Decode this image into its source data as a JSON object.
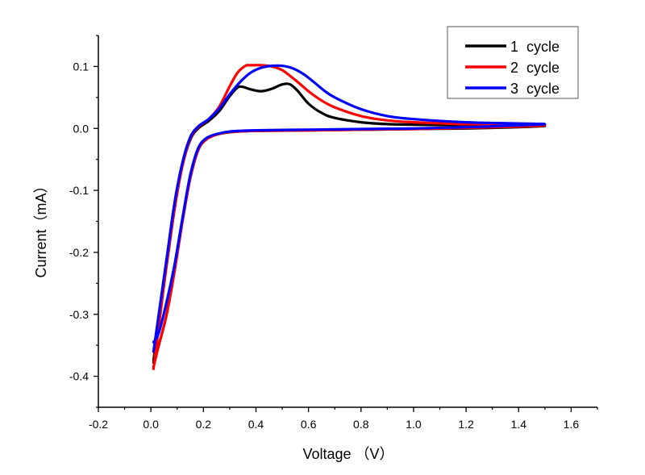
{
  "chart_data": {
    "type": "line",
    "title": "",
    "xlabel": "Voltage （V）",
    "ylabel": "Current（mA）",
    "xlim": [
      -0.2,
      1.7
    ],
    "ylim": [
      -0.45,
      0.15
    ],
    "xticks": [
      -0.2,
      0.0,
      0.2,
      0.4,
      0.6,
      0.8,
      1.0,
      1.2,
      1.4,
      1.6
    ],
    "xtick_labels": [
      "-0.2",
      "0.0",
      "0.2",
      "0.4",
      "0.6",
      "0.8",
      "1.0",
      "1.2",
      "1.4",
      "1.6"
    ],
    "yticks": [
      0.1,
      0.0,
      -0.1,
      -0.2,
      -0.3,
      -0.4
    ],
    "ytick_labels": [
      "0.1",
      "0.0",
      "-0.1",
      "-0.2",
      "-0.3",
      "-0.4"
    ],
    "grid": false,
    "legend_position": "top-right",
    "series": [
      {
        "name": "1  cycle",
        "color": "#000000",
        "x": [
          0.01,
          0.03,
          0.06,
          0.09,
          0.12,
          0.15,
          0.18,
          0.22,
          0.26,
          0.3,
          0.33,
          0.35,
          0.38,
          0.42,
          0.46,
          0.5,
          0.53,
          0.56,
          0.6,
          0.65,
          0.7,
          0.8,
          0.9,
          1.0,
          1.2,
          1.4,
          1.5,
          1.4,
          1.2,
          1.0,
          0.8,
          0.6,
          0.4,
          0.3,
          0.25,
          0.21,
          0.18,
          0.15,
          0.12,
          0.09,
          0.06,
          0.03,
          0.01
        ],
        "y": [
          -0.375,
          -0.31,
          -0.22,
          -0.13,
          -0.06,
          -0.018,
          0.0,
          0.012,
          0.028,
          0.052,
          0.066,
          0.067,
          0.063,
          0.06,
          0.064,
          0.071,
          0.071,
          0.06,
          0.04,
          0.025,
          0.017,
          0.01,
          0.007,
          0.006,
          0.005,
          0.004,
          0.004,
          0.002,
          0.0,
          -0.001,
          -0.002,
          -0.003,
          -0.004,
          -0.006,
          -0.01,
          -0.018,
          -0.035,
          -0.08,
          -0.15,
          -0.23,
          -0.3,
          -0.35,
          -0.378
        ]
      },
      {
        "name": "2  cycle",
        "color": "#ff0000",
        "x": [
          0.01,
          0.03,
          0.06,
          0.09,
          0.12,
          0.15,
          0.18,
          0.22,
          0.26,
          0.3,
          0.33,
          0.36,
          0.38,
          0.42,
          0.46,
          0.5,
          0.55,
          0.6,
          0.65,
          0.7,
          0.8,
          0.9,
          1.0,
          1.2,
          1.4,
          1.5,
          1.4,
          1.2,
          1.0,
          0.8,
          0.6,
          0.4,
          0.3,
          0.25,
          0.21,
          0.18,
          0.15,
          0.12,
          0.09,
          0.06,
          0.03,
          0.01
        ],
        "y": [
          -0.388,
          -0.32,
          -0.22,
          -0.13,
          -0.06,
          -0.016,
          0.002,
          0.015,
          0.035,
          0.068,
          0.09,
          0.101,
          0.102,
          0.102,
          0.1,
          0.094,
          0.078,
          0.06,
          0.045,
          0.034,
          0.02,
          0.013,
          0.01,
          0.007,
          0.006,
          0.005,
          0.003,
          0.001,
          -0.001,
          -0.002,
          -0.003,
          -0.004,
          -0.006,
          -0.01,
          -0.018,
          -0.035,
          -0.08,
          -0.15,
          -0.23,
          -0.3,
          -0.35,
          -0.385
        ]
      },
      {
        "name": "3  cycle",
        "color": "#0000ff",
        "x": [
          0.01,
          0.03,
          0.06,
          0.09,
          0.12,
          0.15,
          0.18,
          0.22,
          0.26,
          0.3,
          0.34,
          0.38,
          0.42,
          0.46,
          0.5,
          0.54,
          0.58,
          0.62,
          0.66,
          0.7,
          0.8,
          0.9,
          1.0,
          1.2,
          1.4,
          1.5,
          1.4,
          1.2,
          1.0,
          0.8,
          0.6,
          0.4,
          0.3,
          0.25,
          0.21,
          0.18,
          0.15,
          0.12,
          0.09,
          0.06,
          0.03,
          0.01
        ],
        "y": [
          -0.36,
          -0.3,
          -0.21,
          -0.12,
          -0.055,
          -0.014,
          0.003,
          0.015,
          0.032,
          0.055,
          0.075,
          0.09,
          0.098,
          0.101,
          0.101,
          0.097,
          0.088,
          0.075,
          0.061,
          0.05,
          0.031,
          0.02,
          0.015,
          0.01,
          0.008,
          0.007,
          0.005,
          0.002,
          0.0,
          -0.001,
          -0.002,
          -0.003,
          -0.005,
          -0.009,
          -0.016,
          -0.032,
          -0.075,
          -0.145,
          -0.22,
          -0.28,
          -0.33,
          -0.345
        ]
      }
    ]
  }
}
